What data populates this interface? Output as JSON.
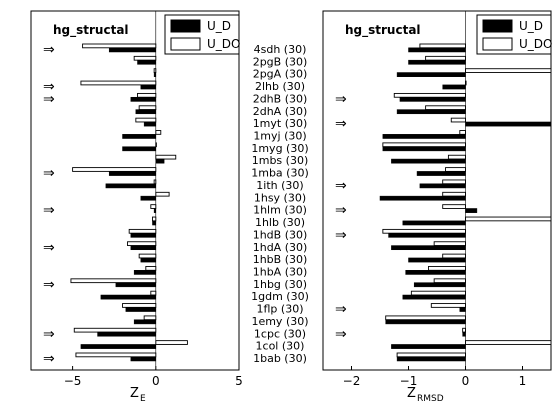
{
  "chart_data": [
    {
      "type": "bar",
      "orientation": "horizontal",
      "title": "hg_structal",
      "xlabel_main": "Z",
      "xlabel_sub": "E",
      "xlim": [
        -7.5,
        5
      ],
      "xticks": [
        "−5",
        "0",
        "5"
      ],
      "xtick_values": [
        -5,
        0,
        5
      ],
      "legend_position": "top-right",
      "categories": [
        "4sdh (30)",
        "2pgB (30)",
        "2pgA (30)",
        "2lhb (30)",
        "2dhB (30)",
        "2dhA (30)",
        "1myt (30)",
        "1myj (30)",
        "1myg (30)",
        "1mbs (30)",
        "1mba (30)",
        "1ith (30)",
        "1hsy (30)",
        "1hlm (30)",
        "1hlb (30)",
        "1hdB (30)",
        "1hdA (30)",
        "1hbB (30)",
        "1hbA (30)",
        "1hbg (30)",
        "1gdm (30)",
        "1flp (30)",
        "1emy (30)",
        "1cpc (30)",
        "1col (30)",
        "1bab (30)"
      ],
      "series": [
        {
          "name": "U_D",
          "color": "#000000",
          "values": [
            -2.8,
            -1.1,
            -0.1,
            -0.9,
            -1.5,
            -1.2,
            -0.7,
            -2.0,
            -2.0,
            0.5,
            -2.8,
            -3.0,
            -0.9,
            -0.1,
            -0.2,
            -1.5,
            -1.5,
            -0.9,
            -1.3,
            -2.4,
            -3.3,
            -1.8,
            -1.3,
            -3.5,
            -4.5,
            -1.5
          ]
        },
        {
          "name": "U_DO",
          "color": "#ffffff",
          "values": [
            -4.4,
            -1.3,
            -0.1,
            -4.5,
            -1.1,
            -1.0,
            -1.2,
            0.3,
            0.0,
            1.2,
            -5.0,
            -0.1,
            0.8,
            -0.3,
            -0.2,
            -1.6,
            -1.7,
            -1.0,
            -0.6,
            -5.1,
            -0.3,
            -2.0,
            -0.7,
            -4.9,
            1.9,
            -4.8
          ]
        }
      ],
      "marked": [
        true,
        false,
        false,
        true,
        true,
        false,
        false,
        false,
        false,
        false,
        true,
        false,
        false,
        true,
        false,
        false,
        true,
        false,
        false,
        true,
        false,
        false,
        false,
        true,
        false,
        true
      ]
    },
    {
      "type": "bar",
      "orientation": "horizontal",
      "title": "hg_structal",
      "xlabel_main": "Z",
      "xlabel_sub": "RMSD",
      "xlim": [
        -2.5,
        1.5
      ],
      "xticks": [
        "−2",
        "−1",
        "0",
        "1"
      ],
      "xtick_values": [
        -2,
        -1,
        0,
        1
      ],
      "legend_position": "top-right",
      "categories": [
        "4sdh (30)",
        "2pgB (30)",
        "2pgA (30)",
        "2lhb (30)",
        "2dhB (30)",
        "2dhA (30)",
        "1myt (30)",
        "1myj (30)",
        "1myg (30)",
        "1mbs (30)",
        "1mba (30)",
        "1ith (30)",
        "1hsy (30)",
        "1hlm (30)",
        "1hlb (30)",
        "1hdB (30)",
        "1hdA (30)",
        "1hbB (30)",
        "1hbA (30)",
        "1hbg (30)",
        "1gdm (30)",
        "1flp (30)",
        "1emy (30)",
        "1cpc (30)",
        "1col (30)",
        "1bab (30)"
      ],
      "series": [
        {
          "name": "U_D",
          "color": "#000000",
          "values": [
            -1.0,
            -1.0,
            -1.2,
            -0.4,
            -1.15,
            -1.2,
            1.5,
            -1.45,
            -1.45,
            -1.3,
            -0.85,
            -0.8,
            -1.5,
            0.2,
            -1.1,
            -1.35,
            -1.3,
            -1.0,
            -1.05,
            -0.9,
            -1.1,
            -0.1,
            -1.4,
            -0.05,
            -1.3,
            -1.2
          ]
        },
        {
          "name": "U_DO",
          "color": "#ffffff",
          "values": [
            -0.8,
            -0.7,
            1.5,
            0.0,
            -1.25,
            -0.7,
            -0.25,
            -0.1,
            -1.45,
            -0.3,
            -0.35,
            -0.4,
            -0.4,
            -0.4,
            1.5,
            -1.45,
            -0.55,
            -0.4,
            -0.65,
            -0.55,
            -0.95,
            -0.6,
            -1.4,
            -0.05,
            1.5,
            -1.2
          ]
        }
      ],
      "marked": [
        false,
        false,
        false,
        false,
        true,
        false,
        true,
        false,
        false,
        false,
        false,
        true,
        false,
        true,
        false,
        true,
        false,
        false,
        false,
        false,
        false,
        true,
        false,
        true,
        false,
        false
      ]
    }
  ],
  "arrow_glyph": "⇒"
}
